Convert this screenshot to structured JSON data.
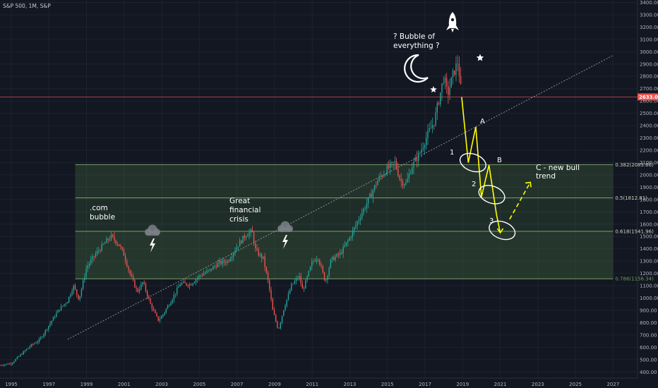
{
  "title": "S&P 500, 1M, S&P",
  "colors": {
    "background": "#131722",
    "grid": "#1e2230",
    "bull": "#26a69a",
    "bear": "#ef5350",
    "fib_zone": "#4f7f45",
    "fib_line": "#8fbf7a",
    "projection": "#ffff00",
    "ellipse": "#ffffff",
    "trendline": "#9598a1",
    "price_line": "#ef5350"
  },
  "chart_data": {
    "type": "candlestick",
    "title": "S&P 500, 1M, S&P",
    "x_axis": {
      "min": 1994.4,
      "max": 2028.3,
      "ticks": [
        "1995",
        "1997",
        "1999",
        "2001",
        "2003",
        "2005",
        "2007",
        "2009",
        "2011",
        "2013",
        "2015",
        "2017",
        "2019",
        "2021",
        "2023",
        "2025",
        "2027"
      ]
    },
    "y_axis": {
      "min": 350,
      "max": 3420,
      "ticks": [
        "400.00",
        "500.00",
        "600.00",
        "700.00",
        "800.00",
        "900.00",
        "1000.00",
        "1100.00",
        "1200.00",
        "1300.00",
        "1400.00",
        "1500.00",
        "1600.00",
        "1700.00",
        "1800.00",
        "1900.00",
        "2000.00",
        "2100.00",
        "2200.00",
        "2300.00",
        "2400.00",
        "2500.00",
        "2600.00",
        "2700.00",
        "2800.00",
        "2900.00",
        "3000.00",
        "3100.00",
        "3200.00",
        "3300.00",
        "3400.00"
      ]
    },
    "price_path": [
      [
        1994.4,
        455
      ],
      [
        1995.0,
        470
      ],
      [
        1995.5,
        540
      ],
      [
        1996.0,
        610
      ],
      [
        1996.5,
        660
      ],
      [
        1997.0,
        780
      ],
      [
        1997.5,
        900
      ],
      [
        1998.0,
        980
      ],
      [
        1998.3,
        1100
      ],
      [
        1998.6,
        990
      ],
      [
        1999.0,
        1250
      ],
      [
        1999.5,
        1360
      ],
      [
        2000.0,
        1450
      ],
      [
        2000.3,
        1500
      ],
      [
        2000.7,
        1440
      ],
      [
        2001.0,
        1350
      ],
      [
        2001.3,
        1200
      ],
      [
        2001.7,
        1050
      ],
      [
        2002.0,
        1130
      ],
      [
        2002.4,
        950
      ],
      [
        2002.8,
        820
      ],
      [
        2003.0,
        850
      ],
      [
        2003.5,
        980
      ],
      [
        2004.0,
        1120
      ],
      [
        2004.5,
        1110
      ],
      [
        2005.0,
        1180
      ],
      [
        2005.5,
        1220
      ],
      [
        2006.0,
        1280
      ],
      [
        2006.5,
        1300
      ],
      [
        2007.0,
        1420
      ],
      [
        2007.5,
        1520
      ],
      [
        2007.8,
        1540
      ],
      [
        2008.0,
        1380
      ],
      [
        2008.4,
        1320
      ],
      [
        2008.7,
        1100
      ],
      [
        2008.9,
        900
      ],
      [
        2009.2,
        740
      ],
      [
        2009.5,
        920
      ],
      [
        2009.9,
        1100
      ],
      [
        2010.3,
        1180
      ],
      [
        2010.5,
        1060
      ],
      [
        2011.0,
        1290
      ],
      [
        2011.3,
        1340
      ],
      [
        2011.7,
        1130
      ],
      [
        2012.0,
        1310
      ],
      [
        2012.5,
        1360
      ],
      [
        2013.0,
        1490
      ],
      [
        2013.5,
        1650
      ],
      [
        2014.0,
        1800
      ],
      [
        2014.5,
        1960
      ],
      [
        2015.0,
        2050
      ],
      [
        2015.4,
        2100
      ],
      [
        2015.7,
        1950
      ],
      [
        2016.0,
        1930
      ],
      [
        2016.3,
        2070
      ],
      [
        2016.7,
        2170
      ],
      [
        2017.0,
        2280
      ],
      [
        2017.5,
        2440
      ],
      [
        2018.0,
        2800
      ],
      [
        2018.2,
        2650
      ],
      [
        2018.5,
        2820
      ],
      [
        2018.75,
        2920
      ],
      [
        2018.95,
        2633
      ]
    ],
    "last_price": "2633.08",
    "fibonacci_levels": [
      {
        "ratio": 0.382,
        "value": 2083.66,
        "label": "0.382(2083.66)"
      },
      {
        "ratio": 0.5,
        "value": 1812.81,
        "label": "0.5(1812.81)"
      },
      {
        "ratio": 0.618,
        "value": 1541.96,
        "label": "0.618(1541.96)"
      },
      {
        "ratio": 0.786,
        "value": 1156.34,
        "label": "0.786(1156.34)"
      }
    ],
    "fib_zone_start": 1998.4,
    "fib_zone_end": 2027.0,
    "trendline": {
      "x1": 1998.0,
      "y1": 665,
      "x2": 2027.0,
      "y2": 2970
    },
    "projection": [
      [
        2018.95,
        2633
      ],
      [
        2019.3,
        2100
      ],
      [
        2019.7,
        2390
      ],
      [
        2020.0,
        1820
      ],
      [
        2020.4,
        2080
      ],
      [
        2020.8,
        1680
      ],
      [
        2021.0,
        1530
      ]
    ],
    "projection_up": [
      [
        2021.5,
        1640
      ],
      [
        2022.6,
        1940
      ]
    ],
    "ellipses": [
      {
        "x": 2019.55,
        "y": 2100
      },
      {
        "x": 2020.55,
        "y": 1840
      },
      {
        "x": 2021.1,
        "y": 1550
      }
    ],
    "annotations": {
      "bubble_top": "? Bubble of",
      "bubble_bottom": "everything ?",
      "com_line1": ".com",
      "com_line2": "bubble",
      "gfc_line1": "Great",
      "gfc_line2": "financial",
      "gfc_line3": "crisis",
      "wave_1": "1",
      "wave_2": "2",
      "wave_3": "3",
      "wave_a": "A",
      "wave_b": "B",
      "c_line1": "C - new bull",
      "c_line2": "trend"
    },
    "icons": [
      "moon-icon",
      "rocket-icon",
      "star-icon",
      "storm-cloud-icon",
      "lightning-icon"
    ]
  }
}
